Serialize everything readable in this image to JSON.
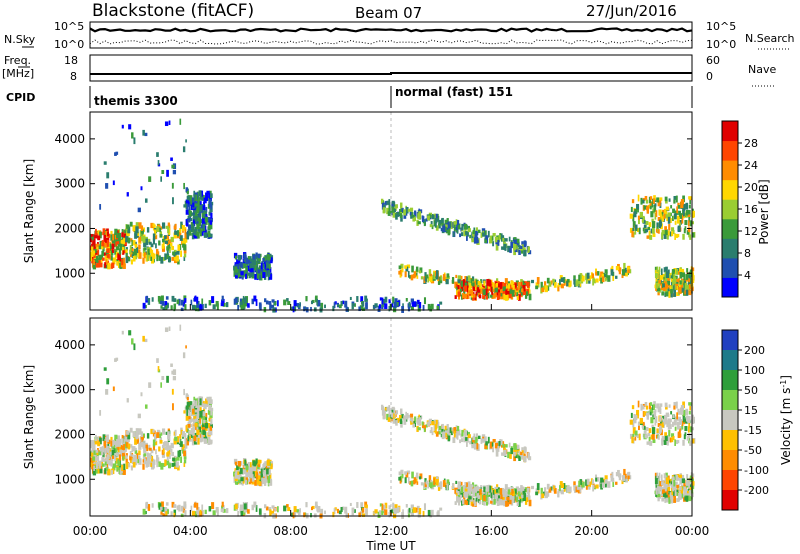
{
  "header": {
    "title": "Blackstone (fitACF)",
    "beam": "Beam 07",
    "date": "27/Jun/2016"
  },
  "chart_data": [
    {
      "type": "line",
      "name": "status-nsky-nsearch",
      "left_label": "N.Sky",
      "right_label": "N.Search",
      "y_tick_labels": [
        "10^5",
        "10^0"
      ]
    },
    {
      "type": "line",
      "name": "status-freq-nave",
      "left_label_line1": "Freq.",
      "left_label_line2": "[MHz]",
      "right_label": "Nave",
      "left_ticks": [
        "18",
        "8"
      ],
      "right_ticks": [
        "60",
        "0"
      ]
    },
    {
      "type": "table",
      "name": "cpid",
      "label": "CPID",
      "segments": [
        {
          "label": "themis 3300",
          "start": "00:00",
          "end": "12:00"
        },
        {
          "label": "normal (fast) 151",
          "start": "12:00",
          "end": "24:00"
        }
      ]
    },
    {
      "type": "heatmap",
      "name": "power-panel",
      "ylabel": "Slant Range [km]",
      "yticks": [
        "1000",
        "2000",
        "3000",
        "4000"
      ],
      "ylim": [
        180,
        4600
      ],
      "xlim_hours": [
        0,
        24
      ],
      "colorbar": {
        "label": "Power [dB]",
        "ticks": [
          "4",
          "8",
          "12",
          "16",
          "20",
          "24",
          "28"
        ],
        "colors": [
          "#0000ff",
          "#1f4fb0",
          "#2a7d6e",
          "#3a9a3a",
          "#9acd32",
          "#ffd700",
          "#ff8c00",
          "#ff4500",
          "#e00000"
        ]
      },
      "regions": [
        {
          "t0": 0.0,
          "t1": 1.4,
          "r0": 1150,
          "r1": 1950,
          "level": "high"
        },
        {
          "t0": 1.4,
          "t1": 3.8,
          "r0": 1250,
          "r1": 2100,
          "level": "medium"
        },
        {
          "t0": 0.2,
          "t1": 3.9,
          "r0": 2400,
          "r1": 4400,
          "level": "scatter"
        },
        {
          "t0": 3.8,
          "t1": 4.8,
          "r0": 1800,
          "r1": 2800,
          "level": "low"
        },
        {
          "t0": 5.7,
          "t1": 7.2,
          "r0": 900,
          "r1": 1400,
          "level": "low"
        },
        {
          "t0": 2.0,
          "t1": 14.0,
          "r0": 180,
          "r1": 450,
          "level": "low"
        },
        {
          "t0": 11.6,
          "t1": 17.5,
          "r0": 1300,
          "r1": 2600,
          "level": "arc-upper"
        },
        {
          "t0": 12.2,
          "t1": 21.5,
          "r0": 700,
          "r1": 1200,
          "level": "arc-lower"
        },
        {
          "t0": 14.5,
          "t1": 17.5,
          "r0": 450,
          "r1": 800,
          "level": "high"
        },
        {
          "t0": 21.5,
          "t1": 24.0,
          "r0": 1800,
          "r1": 2700,
          "level": "medium"
        },
        {
          "t0": 22.5,
          "t1": 24.0,
          "r0": 500,
          "r1": 1100,
          "level": "medium"
        }
      ]
    },
    {
      "type": "heatmap",
      "name": "velocity-panel",
      "ylabel": "Slant Range [km]",
      "yticks": [
        "1000",
        "2000",
        "3000",
        "4000"
      ],
      "ylim": [
        180,
        4600
      ],
      "xlabel": "Time UT",
      "xticks": [
        "00:00",
        "04:00",
        "08:00",
        "12:00",
        "16:00",
        "20:00",
        "00:00"
      ],
      "colorbar": {
        "label": "Velocity [m s^-1]",
        "ticks": [
          "200",
          "100",
          "50",
          "15",
          "-15",
          "-50",
          "-100",
          "-200"
        ],
        "colors": [
          "#2040c0",
          "#1e7a8a",
          "#2e9e3a",
          "#7ad14a",
          "#c8c8c0",
          "#ffc000",
          "#ff8c00",
          "#ff4500",
          "#e00000"
        ]
      }
    }
  ]
}
